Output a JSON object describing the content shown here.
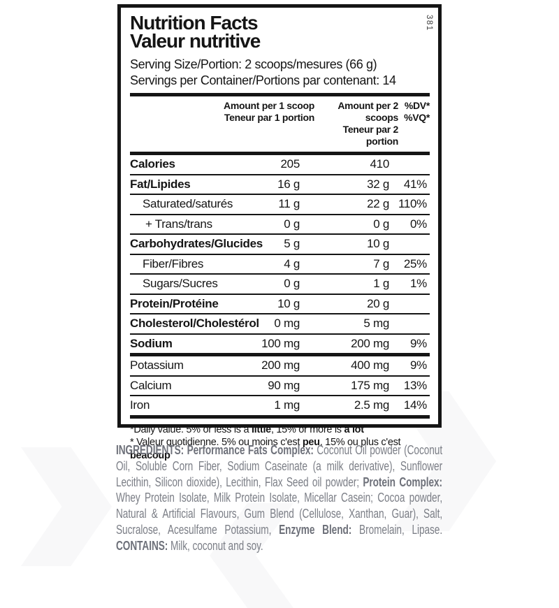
{
  "label": {
    "code": "381",
    "title_en": "Nutrition Facts",
    "title_fr": "Valeur nutritive",
    "serving_size_line": "Serving Size/Portion: 2 scoops/mesures (66 g)",
    "servings_per_container_line": "Servings per Container/Portions par contenant: 14",
    "columns": {
      "amount1": {
        "line1": "Amount per 1 scoop",
        "line2": "Teneur par 1 portion"
      },
      "amount2": {
        "line1": "Amount per 2 scoops",
        "line2": "Teneur par 2 portion"
      },
      "dv": {
        "line1": "%DV*",
        "line2": "%VQ*"
      }
    },
    "rows": [
      {
        "label": "Calories",
        "amount1": "205",
        "amount2": "410",
        "dv": "",
        "bold": true,
        "indent": 0,
        "sep": "none"
      },
      {
        "label": "Fat/Lipides",
        "amount1": "16 g",
        "amount2": "32 g",
        "dv": "41%",
        "bold": true,
        "indent": 0,
        "sep": "thin"
      },
      {
        "label": "Saturated/saturés",
        "amount1": "11 g",
        "amount2": "22 g",
        "dv": "110%",
        "bold": false,
        "indent": 1,
        "sep": "thin"
      },
      {
        "label": "+ Trans/trans",
        "amount1": "0 g",
        "amount2": "0 g",
        "dv": "0%",
        "bold": false,
        "indent": 2,
        "sep": "thin"
      },
      {
        "label": "Carbohydrates/Glucides",
        "amount1": "5 g",
        "amount2": "10 g",
        "dv": "",
        "bold": true,
        "indent": 0,
        "sep": "thin"
      },
      {
        "label": "Fiber/Fibres",
        "amount1": "4 g",
        "amount2": "7 g",
        "dv": "25%",
        "bold": false,
        "indent": 1,
        "sep": "thin"
      },
      {
        "label": "Sugars/Sucres",
        "amount1": "0 g",
        "amount2": "1 g",
        "dv": "1%",
        "bold": false,
        "indent": 1,
        "sep": "thin"
      },
      {
        "label": "Protein/Protéine",
        "amount1": "10 g",
        "amount2": "20 g",
        "dv": "",
        "bold": true,
        "indent": 0,
        "sep": "thin"
      },
      {
        "label": "Cholesterol/Cholestérol",
        "amount1": "0 mg",
        "amount2": "5 mg",
        "dv": "",
        "bold": true,
        "indent": 0,
        "sep": "thin"
      },
      {
        "label": "Sodium",
        "amount1": "100 mg",
        "amount2": "200 mg",
        "dv": "9%",
        "bold": true,
        "indent": 0,
        "sep": "thin"
      },
      {
        "label": "Potassium",
        "amount1": "200 mg",
        "amount2": "400 mg",
        "dv": "9%",
        "bold": false,
        "indent": 0,
        "sep": "thick"
      },
      {
        "label": "Calcium",
        "amount1": "90 mg",
        "amount2": "175 mg",
        "dv": "13%",
        "bold": false,
        "indent": 0,
        "sep": "thin"
      },
      {
        "label": "Iron",
        "amount1": "1 mg",
        "amount2": "2.5 mg",
        "dv": "14%",
        "bold": false,
        "indent": 0,
        "sep": "thin"
      }
    ],
    "footnote_en": [
      {
        "t": "*Daily value. 5% or less is a "
      },
      {
        "t": "little",
        "b": true
      },
      {
        "t": ", 15% or more is "
      },
      {
        "t": "a lot",
        "b": true
      }
    ],
    "footnote_fr": [
      {
        "t": "* Valeur quotidienne. 5% ou moins c'est "
      },
      {
        "t": "peu",
        "b": true
      },
      {
        "t": ", 15% ou plus c'est "
      },
      {
        "t": "beacoup",
        "b": true
      }
    ]
  },
  "ingredients": {
    "segments": [
      {
        "t": "INGREDIENTS: ",
        "b": true
      },
      {
        "t": "Performance Fats Complex: ",
        "b": true
      },
      {
        "t": "Coconut Oil powder (Coconut Oil, Soluble Corn Fiber, Sodium Caseinate (a milk derivative), Sunflower Lecithin, Silicon dioxide), Lecithin, Flax Seed oil powder; "
      },
      {
        "t": "Protein Complex: ",
        "b": true
      },
      {
        "t": "Whey Protein Isolate, Milk Protein Isolate, Micellar Casein; Cocoa powder, Natural & Artificial Flavours, Gum Blend (Cellulose, Xanthan, Guar), Salt, Sucralose, Acesulfame Potassium, "
      },
      {
        "t": "Enzyme Blend: ",
        "b": true
      },
      {
        "t": "Bromelain, Lipase. "
      },
      {
        "t": "CONTAINS: ",
        "b": true
      },
      {
        "t": "Milk, coconut and soy."
      }
    ]
  },
  "colors": {
    "ink": "#151515",
    "ingredients_gray": "#7b7e86",
    "background": "#ffffff"
  }
}
